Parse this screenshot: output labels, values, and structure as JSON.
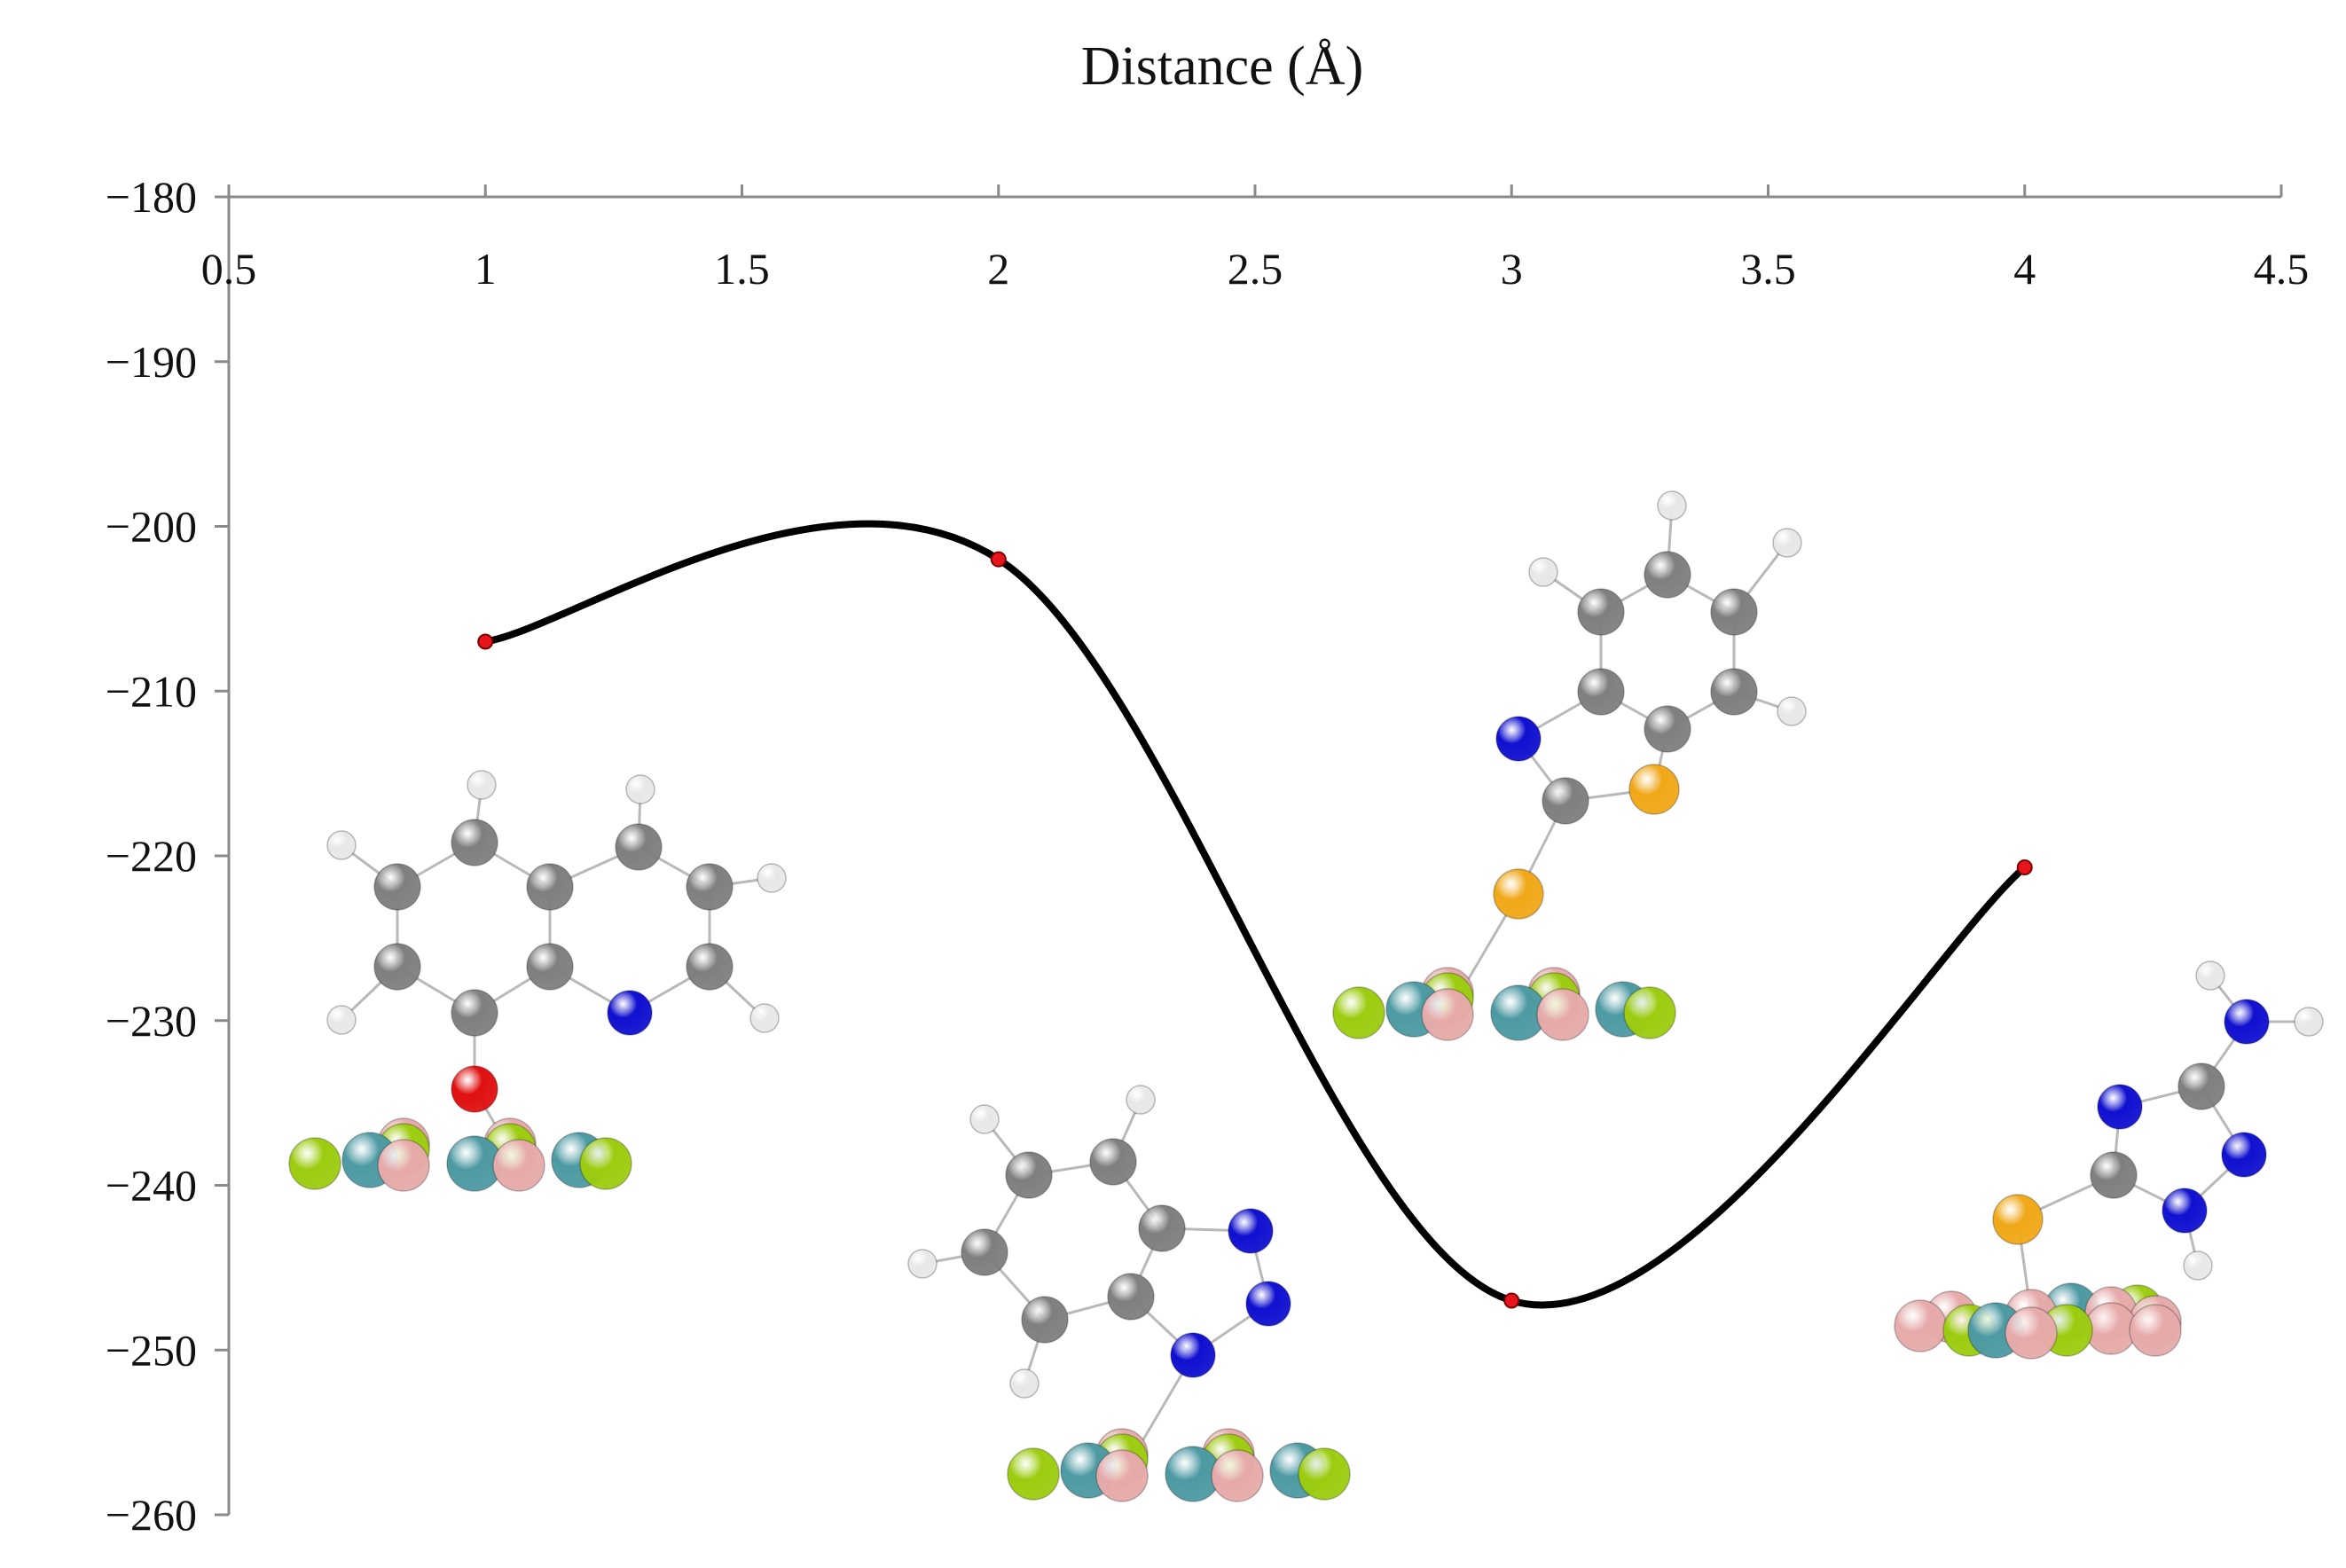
{
  "chart_data": {
    "type": "line",
    "xlabel": "Distance (Å)",
    "ylabel": "",
    "title": "",
    "xlim": [
      0.5,
      4.5
    ],
    "ylim": [
      -260,
      -180
    ],
    "x_ticks": [
      "0.5",
      "1",
      "1.5",
      "2",
      "2.5",
      "3",
      "3.5",
      "4",
      "4.5"
    ],
    "y_ticks": [
      "−180",
      "−190",
      "−200",
      "−210",
      "−220",
      "−230",
      "−240",
      "−250",
      "−260"
    ],
    "x_axis_position": "top",
    "grid": false,
    "legend": "none",
    "series": [
      {
        "color": "#000000",
        "marker_color": "#e8141b",
        "smooth": true,
        "points": [
          {
            "x": 1,
            "y": -207
          },
          {
            "x": 2,
            "y": -202
          },
          {
            "x": 3,
            "y": -247
          },
          {
            "x": 4,
            "y": -220.7
          }
        ]
      }
    ]
  },
  "colors": {
    "carbon": "#7f7f7f",
    "hydrogen": "#e8e8e8",
    "nitrogen": "#1010d0",
    "oxygen": "#e01010",
    "sulfur": "#f0a818",
    "surface_pink": "#e6aaaa",
    "surface_green": "#9ccc10",
    "surface_teal": "#4d9aa3"
  },
  "illustrations": [
    "molecule-8-hydroxyquinoline",
    "molecule-benzotriazole",
    "molecule-mercaptobenzothiazole",
    "molecule-aminotriazole-thiol"
  ]
}
